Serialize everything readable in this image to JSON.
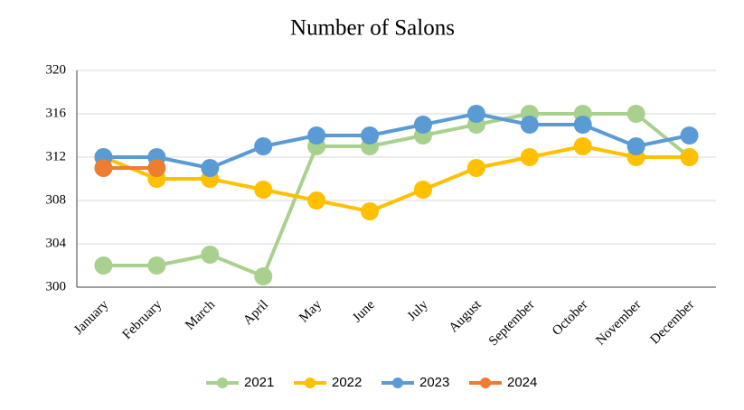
{
  "chart_data": {
    "type": "line",
    "title": "Number of Salons",
    "categories": [
      "January",
      "February",
      "March",
      "April",
      "May",
      "June",
      "July",
      "August",
      "September",
      "October",
      "November",
      "December"
    ],
    "series": [
      {
        "name": "2021",
        "color": "#a9d18e",
        "values": [
          302,
          302,
          303,
          301,
          313,
          313,
          314,
          315,
          316,
          316,
          316,
          312
        ]
      },
      {
        "name": "2022",
        "color": "#ffc000",
        "values": [
          312,
          310,
          310,
          309,
          308,
          307,
          309,
          311,
          312,
          313,
          312,
          312
        ]
      },
      {
        "name": "2023",
        "color": "#5b9bd5",
        "values": [
          312,
          312,
          311,
          313,
          314,
          314,
          315,
          316,
          315,
          315,
          313,
          314
        ]
      },
      {
        "name": "2024",
        "color": "#ed7d31",
        "values": [
          311,
          311,
          null,
          null,
          null,
          null,
          null,
          null,
          null,
          null,
          null,
          null
        ]
      }
    ],
    "ylim": [
      300,
      320
    ],
    "yticks": [
      300,
      304,
      308,
      312,
      316,
      320
    ],
    "grid": true,
    "legend": "bottom"
  }
}
